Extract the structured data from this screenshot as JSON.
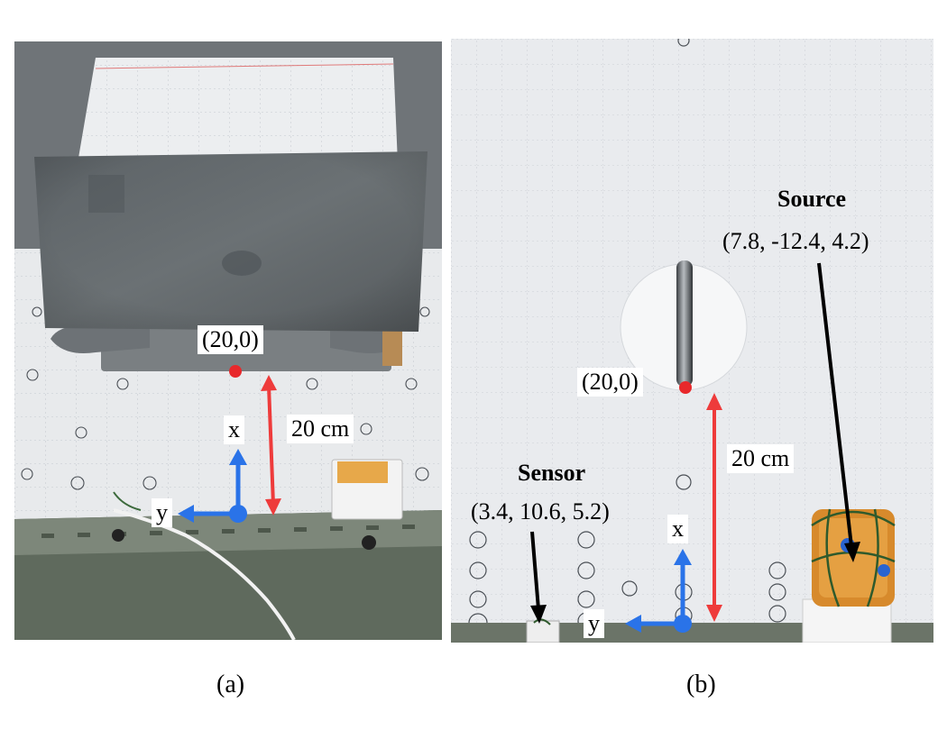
{
  "panel_a": {
    "point_label": "(20,0)",
    "distance_label": "20 cm",
    "x_axis_label": "x",
    "y_axis_label": "y",
    "caption": "(a)",
    "colors": {
      "point": "#e8282b",
      "distance_arrow": "#ee3b3b",
      "axis": "#2a73e8"
    }
  },
  "panel_b": {
    "point_label": "(20,0)",
    "distance_label": "20 cm",
    "x_axis_label": "x",
    "y_axis_label": "y",
    "source_title": "Source",
    "source_coords": "(7.8, -12.4, 4.2)",
    "sensor_title": "Sensor",
    "sensor_coords": "(3.4, 10.6, 5.2)",
    "caption": "(b)",
    "colors": {
      "point": "#e8282b",
      "distance_arrow": "#ee3b3b",
      "axis": "#2a73e8",
      "pointer": "#000000"
    }
  }
}
